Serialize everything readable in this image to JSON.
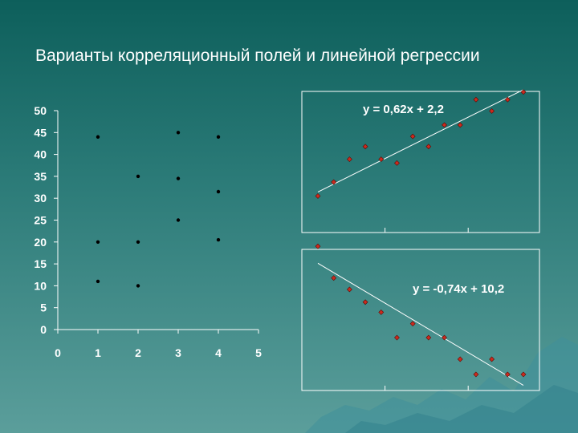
{
  "slide_title": "Варианты корреляционный полей и линейной регрессии",
  "chart_data": [
    {
      "type": "scatter",
      "title": "",
      "xlim": [
        0,
        5
      ],
      "ylim": [
        0,
        50
      ],
      "x_ticks": [
        0,
        1,
        2,
        3,
        4,
        5
      ],
      "y_ticks": [
        0,
        5,
        10,
        15,
        20,
        25,
        30,
        35,
        40,
        45,
        50
      ],
      "marker_color": "#000000",
      "points": [
        {
          "x": 1,
          "y": 44
        },
        {
          "x": 1,
          "y": 20
        },
        {
          "x": 1,
          "y": 11
        },
        {
          "x": 2,
          "y": 35
        },
        {
          "x": 2,
          "y": 20
        },
        {
          "x": 2,
          "y": 10
        },
        {
          "x": 3,
          "y": 45
        },
        {
          "x": 3,
          "y": 34.5
        },
        {
          "x": 3,
          "y": 25
        },
        {
          "x": 4,
          "y": 44
        },
        {
          "x": 4,
          "y": 31.5
        },
        {
          "x": 4,
          "y": 20.5
        }
      ]
    },
    {
      "type": "scatter",
      "trendline_equation": "y = 0,62x + 2,2",
      "xlim": [
        0,
        14
      ],
      "ylim": [
        0,
        11
      ],
      "marker_color": "#cc2a1e",
      "trendline_color": "#ffffff",
      "points": [
        {
          "x": 1,
          "y": 2.5
        },
        {
          "x": 2,
          "y": 3.6
        },
        {
          "x": 3,
          "y": 5.4
        },
        {
          "x": 4,
          "y": 6.4
        },
        {
          "x": 5,
          "y": 5.4
        },
        {
          "x": 6,
          "y": 5.1
        },
        {
          "x": 7,
          "y": 7.2
        },
        {
          "x": 8,
          "y": 6.4
        },
        {
          "x": 9,
          "y": 8.1
        },
        {
          "x": 10,
          "y": 8.1
        },
        {
          "x": 11,
          "y": 10.1
        },
        {
          "x": 12,
          "y": 9.2
        },
        {
          "x": 13,
          "y": 10.1
        },
        {
          "x": 14,
          "y": 10.7
        }
      ]
    },
    {
      "type": "scatter",
      "trendline_equation": "y = -0,74x + 10,2",
      "xlim": [
        0,
        14
      ],
      "ylim": [
        0,
        11
      ],
      "marker_color": "#cc2a1e",
      "trendline_color": "#ffffff",
      "points": [
        {
          "x": 1,
          "y": 10.8
        },
        {
          "x": 2,
          "y": 8.3
        },
        {
          "x": 3,
          "y": 7.4
        },
        {
          "x": 4,
          "y": 6.4
        },
        {
          "x": 5,
          "y": 5.6
        },
        {
          "x": 6,
          "y": 3.6
        },
        {
          "x": 7,
          "y": 4.7
        },
        {
          "x": 8,
          "y": 3.6
        },
        {
          "x": 9,
          "y": 3.6
        },
        {
          "x": 10,
          "y": 1.9
        },
        {
          "x": 11,
          "y": 0.7
        },
        {
          "x": 12,
          "y": 1.9
        },
        {
          "x": 13,
          "y": 0.7
        },
        {
          "x": 14,
          "y": 0.7
        }
      ]
    }
  ]
}
